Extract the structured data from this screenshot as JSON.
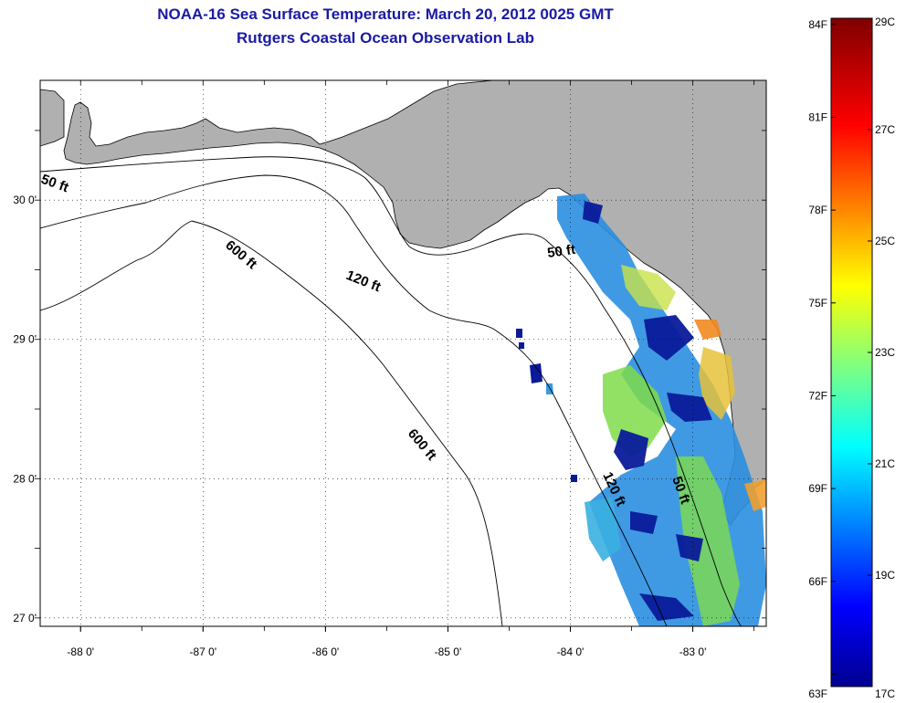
{
  "header": {
    "title": "NOAA-16 Sea Surface Temperature:  March 20, 2012 0025 GMT",
    "subtitle": "Rutgers Coastal Ocean Observation Lab"
  },
  "map": {
    "region": "Gulf of Mexico - Florida west coast",
    "lon_range": [
      -88.33,
      -82.4
    ],
    "lat_range": [
      26.94,
      30.86
    ],
    "lon_ticks": [
      {
        "value": -88,
        "label": "-88 0'"
      },
      {
        "value": -87,
        "label": "-87 0'"
      },
      {
        "value": -86,
        "label": "-86 0'"
      },
      {
        "value": -85,
        "label": "-85 0'"
      },
      {
        "value": -84,
        "label": "-84 0'"
      },
      {
        "value": -83,
        "label": "-83 0'"
      }
    ],
    "lat_ticks": [
      {
        "value": 30,
        "label": "30 0'"
      },
      {
        "value": 29,
        "label": "29 0'"
      },
      {
        "value": 28,
        "label": "28 0'"
      },
      {
        "value": 27,
        "label": "27 0'"
      }
    ],
    "isobath_labels": [
      "50 ft",
      "50 ft",
      "50 ft",
      "120 ft",
      "120 ft",
      "600 ft",
      "600 ft"
    ],
    "colors": {
      "land": "#b0b0b0",
      "ocean": "#ffffff",
      "title": "#1a1aa6"
    }
  },
  "colorbar": {
    "min_c": 17,
    "max_c": 29,
    "celsius_labels": [
      "29C",
      "27C",
      "25C",
      "23C",
      "21C",
      "19C",
      "17C"
    ],
    "celsius_values": [
      29,
      27,
      25,
      23,
      21,
      19,
      17
    ],
    "fahrenheit_labels": [
      "84F",
      "81F",
      "78F",
      "75F",
      "72F",
      "69F",
      "66F",
      "63F"
    ],
    "fahrenheit_values": [
      84,
      81,
      78,
      75,
      72,
      69,
      66,
      63
    ],
    "colormap": "jet"
  }
}
